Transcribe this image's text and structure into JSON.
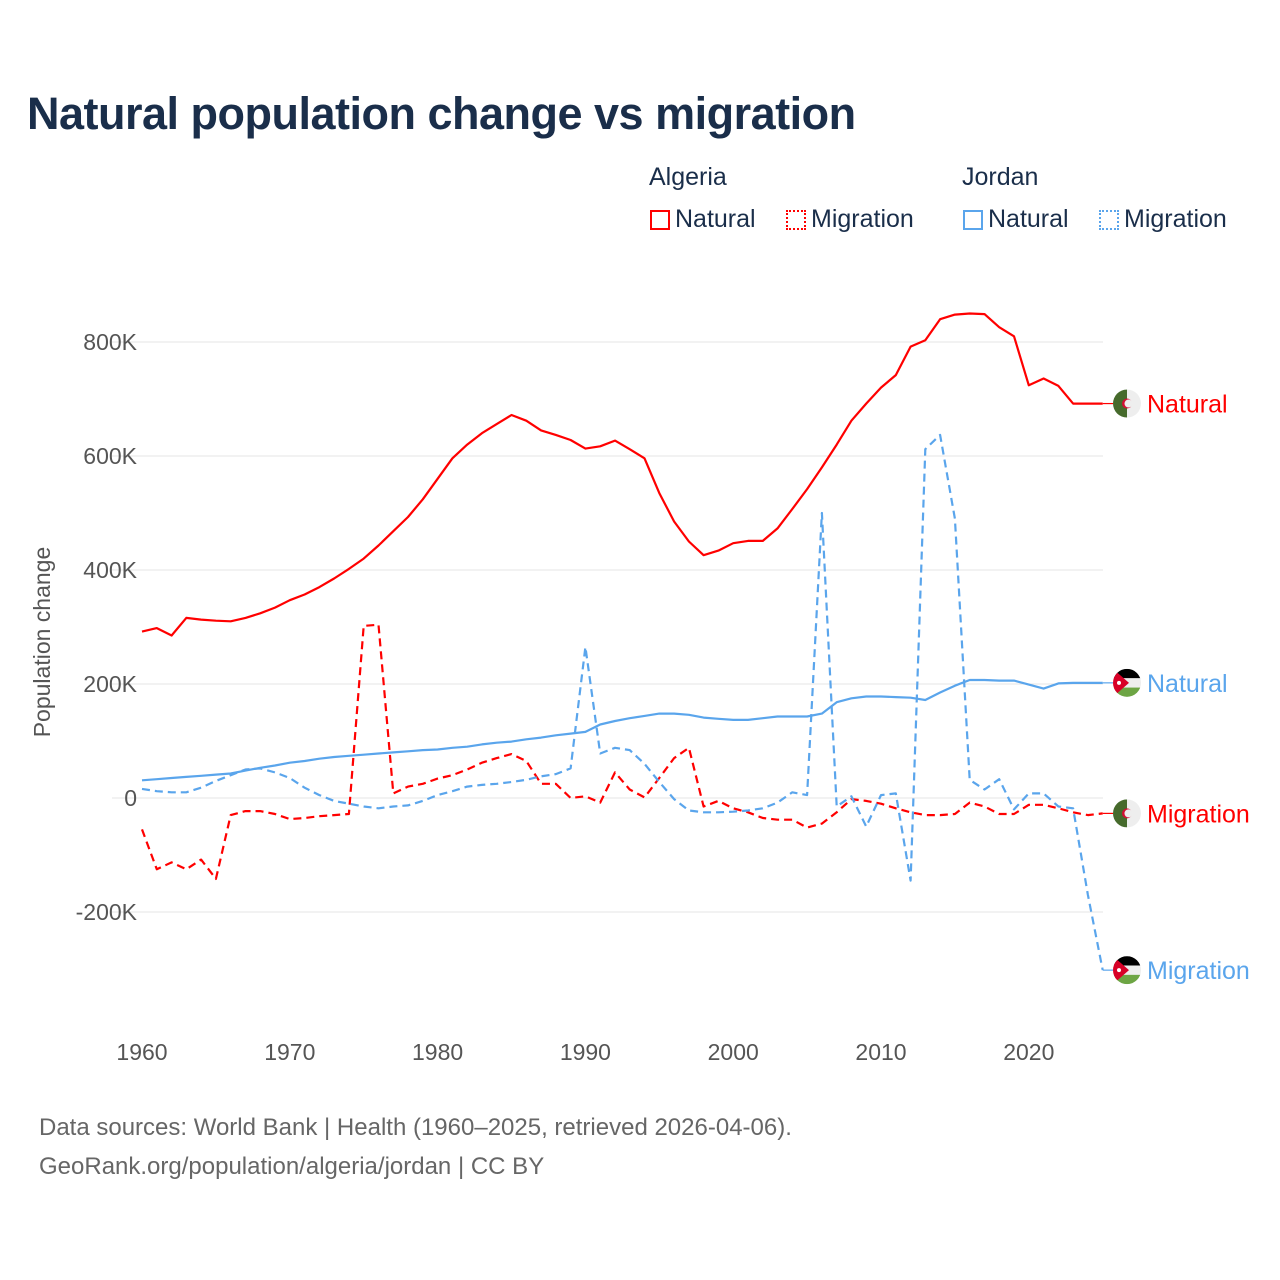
{
  "title": "Natural population change vs migration",
  "legend": {
    "groups": [
      {
        "country": "Algeria",
        "items": [
          {
            "label": "Natural",
            "style": "solid",
            "color": "#ff0000"
          },
          {
            "label": "Migration",
            "style": "dotted",
            "color": "#ff0000"
          }
        ]
      },
      {
        "country": "Jordan",
        "items": [
          {
            "label": "Natural",
            "style": "solid",
            "color": "#5aa5ec"
          },
          {
            "label": "Migration",
            "style": "dotted",
            "color": "#5aa5ec"
          }
        ]
      }
    ]
  },
  "source": {
    "line1": "Data sources: World Bank | Health (1960–2025, retrieved 2026-04-06).",
    "line2": "GeoRank.org/population/algeria/jordan | CC BY"
  },
  "chart_data": {
    "type": "line",
    "title": "Natural population change vs migration",
    "xlabel": "",
    "ylabel": "Population change",
    "xlim": [
      1960,
      2025
    ],
    "ylim": [
      -300000,
      900000
    ],
    "x_ticks": [
      1960,
      1970,
      1980,
      1990,
      2000,
      2010,
      2020
    ],
    "x_tick_labels": [
      "1960",
      "1970",
      "1980",
      "1990",
      "2000",
      "2010",
      "2020"
    ],
    "y_ticks": [
      -200000,
      0,
      200000,
      400000,
      600000,
      800000
    ],
    "y_tick_labels": [
      "-200K",
      "0",
      "200K",
      "400K",
      "600K",
      "800K"
    ],
    "grid": true,
    "x_start": 1960,
    "series": [
      {
        "name": "Algeria Natural",
        "end_label": "Natural",
        "color": "#ff0000",
        "dash": "solid",
        "flag": "algeria",
        "values": [
          292,
          298,
          285,
          316,
          313,
          311,
          310,
          316,
          324,
          334,
          347,
          357,
          370,
          385,
          402,
          420,
          443,
          468,
          493,
          524,
          560,
          596,
          620,
          640,
          656,
          672,
          662,
          645,
          637,
          628,
          613,
          617,
          627,
          612,
          596,
          535,
          485,
          450,
          426,
          434,
          447,
          451,
          451,
          473,
          507,
          542,
          580,
          620,
          662,
          692,
          720,
          742,
          792,
          803,
          840,
          848,
          850,
          849,
          826,
          810,
          724,
          736,
          723,
          692,
          692,
          692
        ]
      },
      {
        "name": "Jordan Natural",
        "end_label": "Natural",
        "color": "#5aa5ec",
        "dash": "solid",
        "flag": "jordan",
        "values": [
          31,
          33,
          35,
          37,
          39,
          41,
          43,
          48,
          53,
          57,
          62,
          65,
          69,
          72,
          74,
          76,
          78,
          80,
          82,
          84,
          85,
          88,
          90,
          94,
          97,
          99,
          103,
          106,
          110,
          113,
          116,
          129,
          135,
          140,
          144,
          148,
          148,
          146,
          141,
          139,
          137,
          137,
          140,
          143,
          143,
          143,
          148,
          168,
          175,
          178,
          178,
          177,
          176,
          172,
          185,
          197,
          207,
          207,
          206,
          206,
          199,
          192,
          201,
          202,
          202,
          202
        ]
      },
      {
        "name": "Algeria Migration",
        "end_label": "Migration",
        "color": "#ff0000",
        "dash": "dashed",
        "flag": "algeria",
        "values": [
          -55,
          -125,
          -113,
          -125,
          -108,
          -142,
          -30,
          -23,
          -23,
          -28,
          -37,
          -35,
          -32,
          -30,
          -28,
          302,
          304,
          8,
          20,
          25,
          34,
          40,
          50,
          62,
          70,
          77,
          65,
          25,
          25,
          0,
          3,
          -8,
          45,
          15,
          1,
          35,
          70,
          88,
          -15,
          -5,
          -18,
          -25,
          -35,
          -38,
          -38,
          -52,
          -45,
          -25,
          -2,
          -5,
          -10,
          -18,
          -25,
          -30,
          -30,
          -28,
          -8,
          -15,
          -28,
          -28,
          -12,
          -12,
          -18,
          -25,
          -30,
          -27
        ]
      },
      {
        "name": "Jordan Migration",
        "end_label": "Migration",
        "color": "#5aa5ec",
        "dash": "dashed",
        "flag": "jordan",
        "values": [
          16,
          12,
          10,
          10,
          18,
          30,
          40,
          50,
          52,
          45,
          35,
          18,
          5,
          -5,
          -10,
          -15,
          -18,
          -15,
          -13,
          -5,
          5,
          12,
          20,
          23,
          25,
          28,
          32,
          38,
          42,
          52,
          265,
          78,
          88,
          84,
          60,
          28,
          -2,
          -22,
          -25,
          -25,
          -24,
          -22,
          -18,
          -8,
          10,
          5,
          500,
          -15,
          3,
          -50,
          5,
          8,
          -145,
          612,
          637,
          490,
          32,
          15,
          33,
          -20,
          8,
          8,
          -15,
          -18,
          -170,
          -302
        ]
      }
    ],
    "value_units": "thousands"
  }
}
